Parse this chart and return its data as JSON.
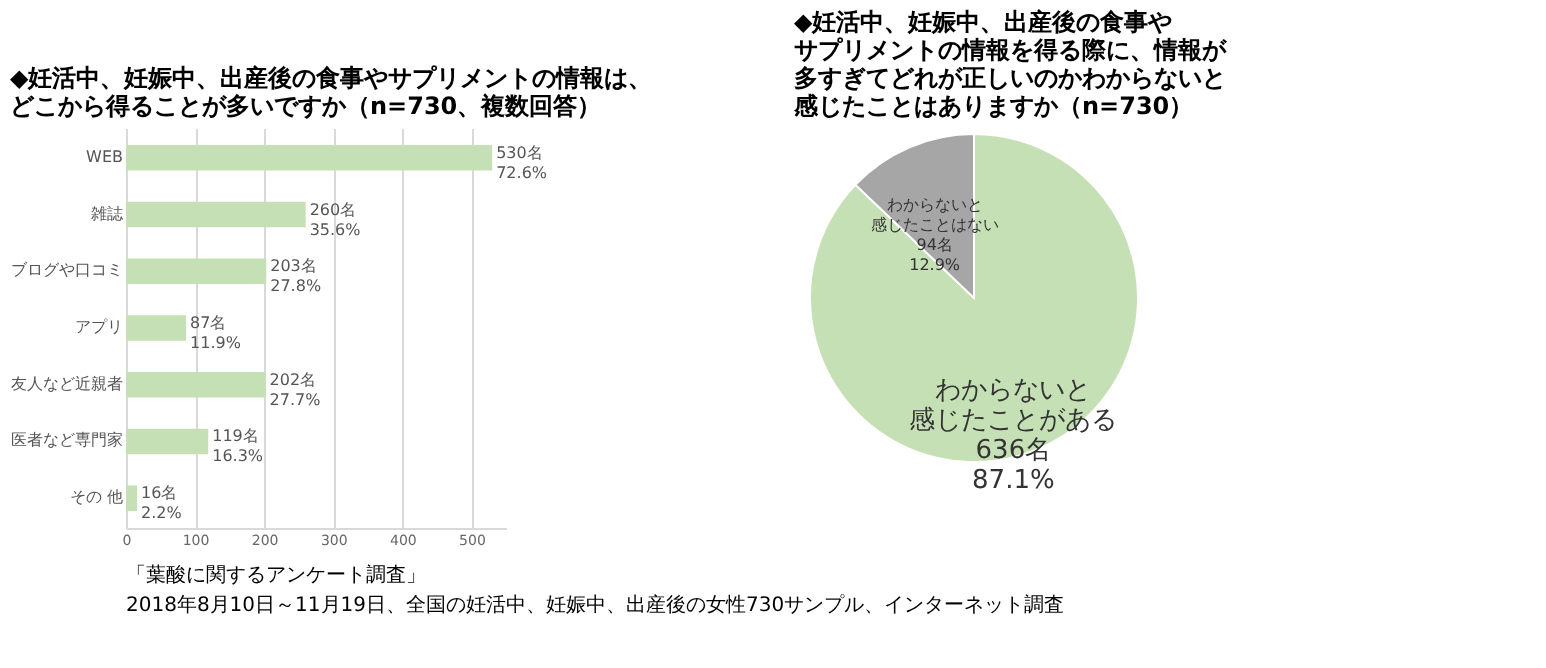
{
  "chart_data": [
    {
      "type": "bar",
      "orientation": "horizontal",
      "title": [
        "◆妊活中、妊娠中、出産後の食事やサプリメントの情報は、",
        "どこから得ることが多いですか（n=730、複数回答）"
      ],
      "categories": [
        "WEB",
        "雑誌",
        "ブログや口コミ",
        "アプリ",
        "友人など近親者",
        "医者など専門家",
        "その 他"
      ],
      "values": [
        530,
        260,
        203,
        87,
        202,
        119,
        16
      ],
      "color": "#c5e0b4",
      "value_labels": [
        "530名\n72.6%",
        "260名\n35.6%",
        "203名\n27.8%",
        "87名\n11.9%",
        "202名\n27.7%",
        "119名\n16.3%",
        "16名\n2.2%"
      ],
      "xlim": [
        0,
        550
      ],
      "xticks": [
        0,
        100,
        200,
        300,
        400,
        500
      ],
      "grid": "x",
      "legend": false,
      "annotations": [
        "「葉酸に関するアンケート調査」",
        "2018年8月10日～11月19日、全国の妊活中、妊娠中、出産後の女性730サンプル、インターネット調査"
      ]
    },
    {
      "type": "pie",
      "title": [
        "◆妊活中、妊娠中、出産後の食事や",
        "サプリメントの情報を得る際に、情報が",
        "多すぎてどれが正しいのかわからないと",
        "感じたことはありますか（n=730）"
      ],
      "categories": [
        "わからないと感じたことがある",
        "わからないと感じたことはない"
      ],
      "values": [
        636,
        94
      ],
      "colors": [
        "#c5e0b4",
        "#a6a6a6"
      ],
      "value_labels": [
        "636名\n87.1%",
        "94名\n12.9%"
      ],
      "legend": false
    }
  ]
}
